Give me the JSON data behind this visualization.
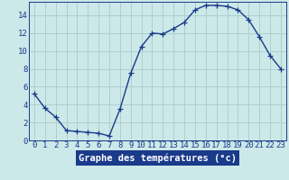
{
  "hours": [
    0,
    1,
    2,
    3,
    4,
    5,
    6,
    7,
    8,
    9,
    10,
    11,
    12,
    13,
    14,
    15,
    16,
    17,
    18,
    19,
    20,
    21,
    22,
    23
  ],
  "temperatures": [
    5.2,
    3.6,
    2.6,
    1.1,
    1.0,
    0.9,
    0.8,
    0.5,
    3.5,
    7.5,
    10.5,
    12.0,
    11.9,
    12.5,
    13.2,
    14.6,
    15.1,
    15.1,
    15.0,
    14.6,
    13.5,
    11.6,
    9.5,
    8.0
  ],
  "xlabel": "Graphe des températures (°c)",
  "line_color": "#1a3a8a",
  "bg_color": "#cce8e8",
  "grid_color": "#aacccc",
  "xlim_min": -0.5,
  "xlim_max": 23.5,
  "ylim_min": 0,
  "ylim_max": 15.5,
  "yticks": [
    0,
    2,
    4,
    6,
    8,
    10,
    12,
    14
  ],
  "xtick_labels": [
    "0",
    "1",
    "2",
    "3",
    "4",
    "5",
    "6",
    "7",
    "8",
    "9",
    "10",
    "11",
    "12",
    "13",
    "14",
    "15",
    "16",
    "17",
    "18",
    "19",
    "20",
    "21",
    "22",
    "23"
  ],
  "tick_color": "#1a3a8a",
  "xlabel_bg": "#1a3a8a",
  "xlabel_fg": "#ffffff",
  "marker": "+",
  "marker_size": 4,
  "line_width": 1.0,
  "font_size": 6.5,
  "label_font_size": 7.5
}
